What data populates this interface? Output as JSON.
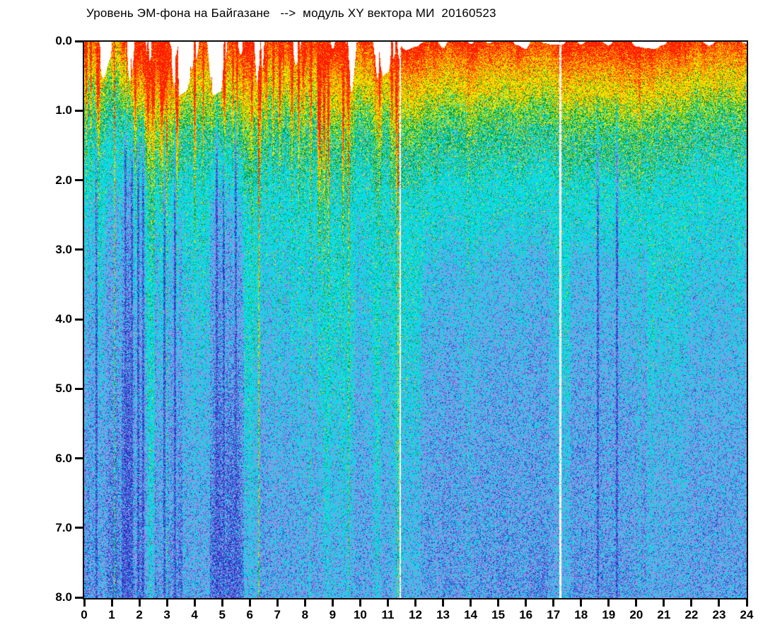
{
  "header": {
    "title": "Уровень ЭМ-фона на Байгазане   -->  модуль XY вектора МИ  20160523",
    "station": "Байгазане",
    "quantity": "модуль XY вектора МИ",
    "date": "20160523"
  },
  "chart_data": {
    "type": "heatmap",
    "subtype": "spectrogram-scatter",
    "title": "Уровень ЭМ-фона на Байгазане   -->  модуль XY вектора МИ  20160523",
    "xlabel": "",
    "ylabel": "",
    "x_axis": {
      "range": [
        0,
        24
      ],
      "tick_labels": [
        "0",
        "1",
        "2",
        "3",
        "4",
        "5",
        "6",
        "7",
        "8",
        "9",
        "10",
        "11",
        "12",
        "13",
        "14",
        "15",
        "16",
        "17",
        "18",
        "19",
        "20",
        "21",
        "22",
        "23",
        "24"
      ]
    },
    "y_axis": {
      "range": [
        0,
        8
      ],
      "inverted": true,
      "tick_labels": [
        "0.0",
        "1.0",
        "2.0",
        "3.0",
        "4.0",
        "5.0",
        "6.0",
        "7.0",
        "8.0"
      ]
    },
    "grid": false,
    "legend": false,
    "colormap_reading": "intensity high->low maps red -> orange -> yellow -> green -> cyan -> periwinkle -> blue; white = no data",
    "palette": {
      "white": "#ffffff",
      "red": "#ff1e00",
      "orange": "#ff9000",
      "yellow": "#f2e600",
      "green": "#009626",
      "cyan": "#00dfe6",
      "peri": "#8f97e6",
      "blue": "#3a46d8",
      "dblue": "#1c22ac"
    },
    "intensity_profile_by_depth": [
      [
        0,
        0.97
      ],
      [
        0.2,
        0.93
      ],
      [
        0.5,
        0.86
      ],
      [
        0.9,
        0.78
      ],
      [
        1.3,
        0.7
      ],
      [
        1.8,
        0.63
      ],
      [
        2.4,
        0.565
      ],
      [
        3.2,
        0.525
      ],
      [
        4.2,
        0.5
      ],
      [
        5.2,
        0.475
      ],
      [
        6.2,
        0.455
      ],
      [
        7.2,
        0.44
      ],
      [
        8,
        0.43
      ]
    ],
    "features": {
      "noisy_disturbed_interval_hours": [
        0,
        11.45
      ],
      "quiet_smooth_interval_hours": [
        11.45,
        24
      ],
      "data_gap_lines_hours": [
        11.45,
        17.25
      ],
      "red_top_band_depth": [
        0,
        0.3
      ],
      "red_finger_max_depth_left_half": 3.0,
      "bright_vertical_streaks_hours": [
        1.1,
        3.0,
        6.33,
        8.18,
        9.58,
        11.37,
        13.92,
        20.12
      ],
      "dark_blue_column_bands_hours": [
        [
          1.35,
          2.35
        ],
        [
          2.55,
          3.55
        ],
        [
          4.55,
          5.8
        ],
        [
          17.6,
          20.4
        ]
      ],
      "white_top_gaps": "many short white gaps at depth 0 - 0.9 between hours 0 and 11.45"
    },
    "render": {
      "seed": 1337,
      "left_cut_hour": 11.45,
      "right_global_offset": -0.02,
      "jitter": 0.07,
      "spike_gain": 0.38,
      "spike_decay_depth": 2.4,
      "spike_clusters": [
        {
          "center": 8.85,
          "sigma": 0.9,
          "gain": 0.55
        },
        {
          "center": 0.35,
          "sigma": 0.5,
          "gain": 0.3
        },
        {
          "center": 4.1,
          "sigma": 1.3,
          "gain": 0.2
        }
      ],
      "gap_lines": [
        {
          "hour": 11.45,
          "dot_p": 0.09,
          "dot_boost": 0.3
        },
        {
          "hour": 17.25,
          "dot_p": 0.06,
          "dot_boost": 0.22
        }
      ],
      "bright_streaks": [
        {
          "hour": 1.1,
          "boost": 0.3,
          "p": 0.62
        },
        {
          "hour": 3.0,
          "boost": 0.18,
          "p": 0.5
        },
        {
          "hour": 6.33,
          "boost": 0.3,
          "p": 0.62
        },
        {
          "hour": 8.18,
          "boost": 0.14,
          "p": 0.45
        },
        {
          "hour": 9.58,
          "boost": 0.2,
          "p": 0.5
        },
        {
          "hour": 11.37,
          "boost": 0.28,
          "p": 0.55
        },
        {
          "hour": 13.92,
          "boost": 0.12,
          "p": 0.42
        },
        {
          "hour": 20.12,
          "boost": 0.11,
          "p": 0.45
        }
      ],
      "dark_streaks_hours": [
        0.45,
        1.5,
        1.72,
        1.95,
        2.15,
        2.9,
        3.3,
        4.8,
        5.05,
        5.5,
        18.6,
        19.3
      ],
      "dark_streak_strength": 0.22,
      "dark_bands": [
        {
          "from": 1.35,
          "to": 2.35,
          "s": 0.1,
          "d0": 0.9
        },
        {
          "from": 2.55,
          "to": 3.55,
          "s": 0.1,
          "d0": 1.6
        },
        {
          "from": 4.55,
          "to": 5.8,
          "s": 0.1,
          "d0": 1.2
        },
        {
          "from": 12.2,
          "to": 16.8,
          "s": 0.035,
          "d0": 2.0
        },
        {
          "from": 17.6,
          "to": 20.4,
          "s": 0.05,
          "d0": 2.0
        }
      ],
      "zones": [
        {
          "t": 0.92,
          "mix": [
            [
              "red",
              0.86
            ],
            [
              "orange",
              0.09
            ],
            [
              "yellow",
              0.05
            ]
          ]
        },
        {
          "t": 0.855,
          "mix": [
            [
              "orange",
              0.48
            ],
            [
              "red",
              0.27
            ],
            [
              "yellow",
              0.25
            ]
          ]
        },
        {
          "t": 0.77,
          "mix": [
            [
              "yellow",
              0.68
            ],
            [
              "orange",
              0.15
            ],
            [
              "green",
              0.12
            ],
            [
              "red",
              0.05
            ]
          ]
        },
        {
          "t": 0.7,
          "mix": [
            [
              "yellow",
              0.44
            ],
            [
              "green",
              0.31
            ],
            [
              "cyan",
              0.25
            ]
          ]
        },
        {
          "t": 0.615,
          "mix": [
            [
              "cyan",
              0.45
            ],
            [
              "green",
              0.29
            ],
            [
              "yellow",
              0.16
            ],
            [
              "peri",
              0.1
            ]
          ]
        },
        {
          "t": 0.5,
          "mix": [
            [
              "cyan",
              0.76
            ],
            [
              "peri",
              0.11
            ],
            [
              "green",
              0.08
            ],
            [
              "yellow",
              0.05
            ]
          ]
        },
        {
          "t": 0.455,
          "mix": [
            [
              "cyan",
              0.56
            ],
            [
              "peri",
              0.36
            ],
            [
              "blue",
              0.05
            ],
            [
              "green",
              0.03
            ]
          ]
        },
        {
          "t": 0.41,
          "mix": [
            [
              "peri",
              0.56
            ],
            [
              "cyan",
              0.34
            ],
            [
              "blue",
              0.08
            ],
            [
              "dblue",
              0.02
            ]
          ]
        },
        {
          "t": 0.34,
          "mix": [
            [
              "peri",
              0.53
            ],
            [
              "cyan",
              0.27
            ],
            [
              "blue",
              0.14
            ],
            [
              "dblue",
              0.06
            ]
          ]
        },
        {
          "t": -9,
          "mix": [
            [
              "blue",
              0.42
            ],
            [
              "peri",
              0.28
            ],
            [
              "dblue",
              0.22
            ],
            [
              "cyan",
              0.08
            ]
          ]
        }
      ]
    }
  }
}
